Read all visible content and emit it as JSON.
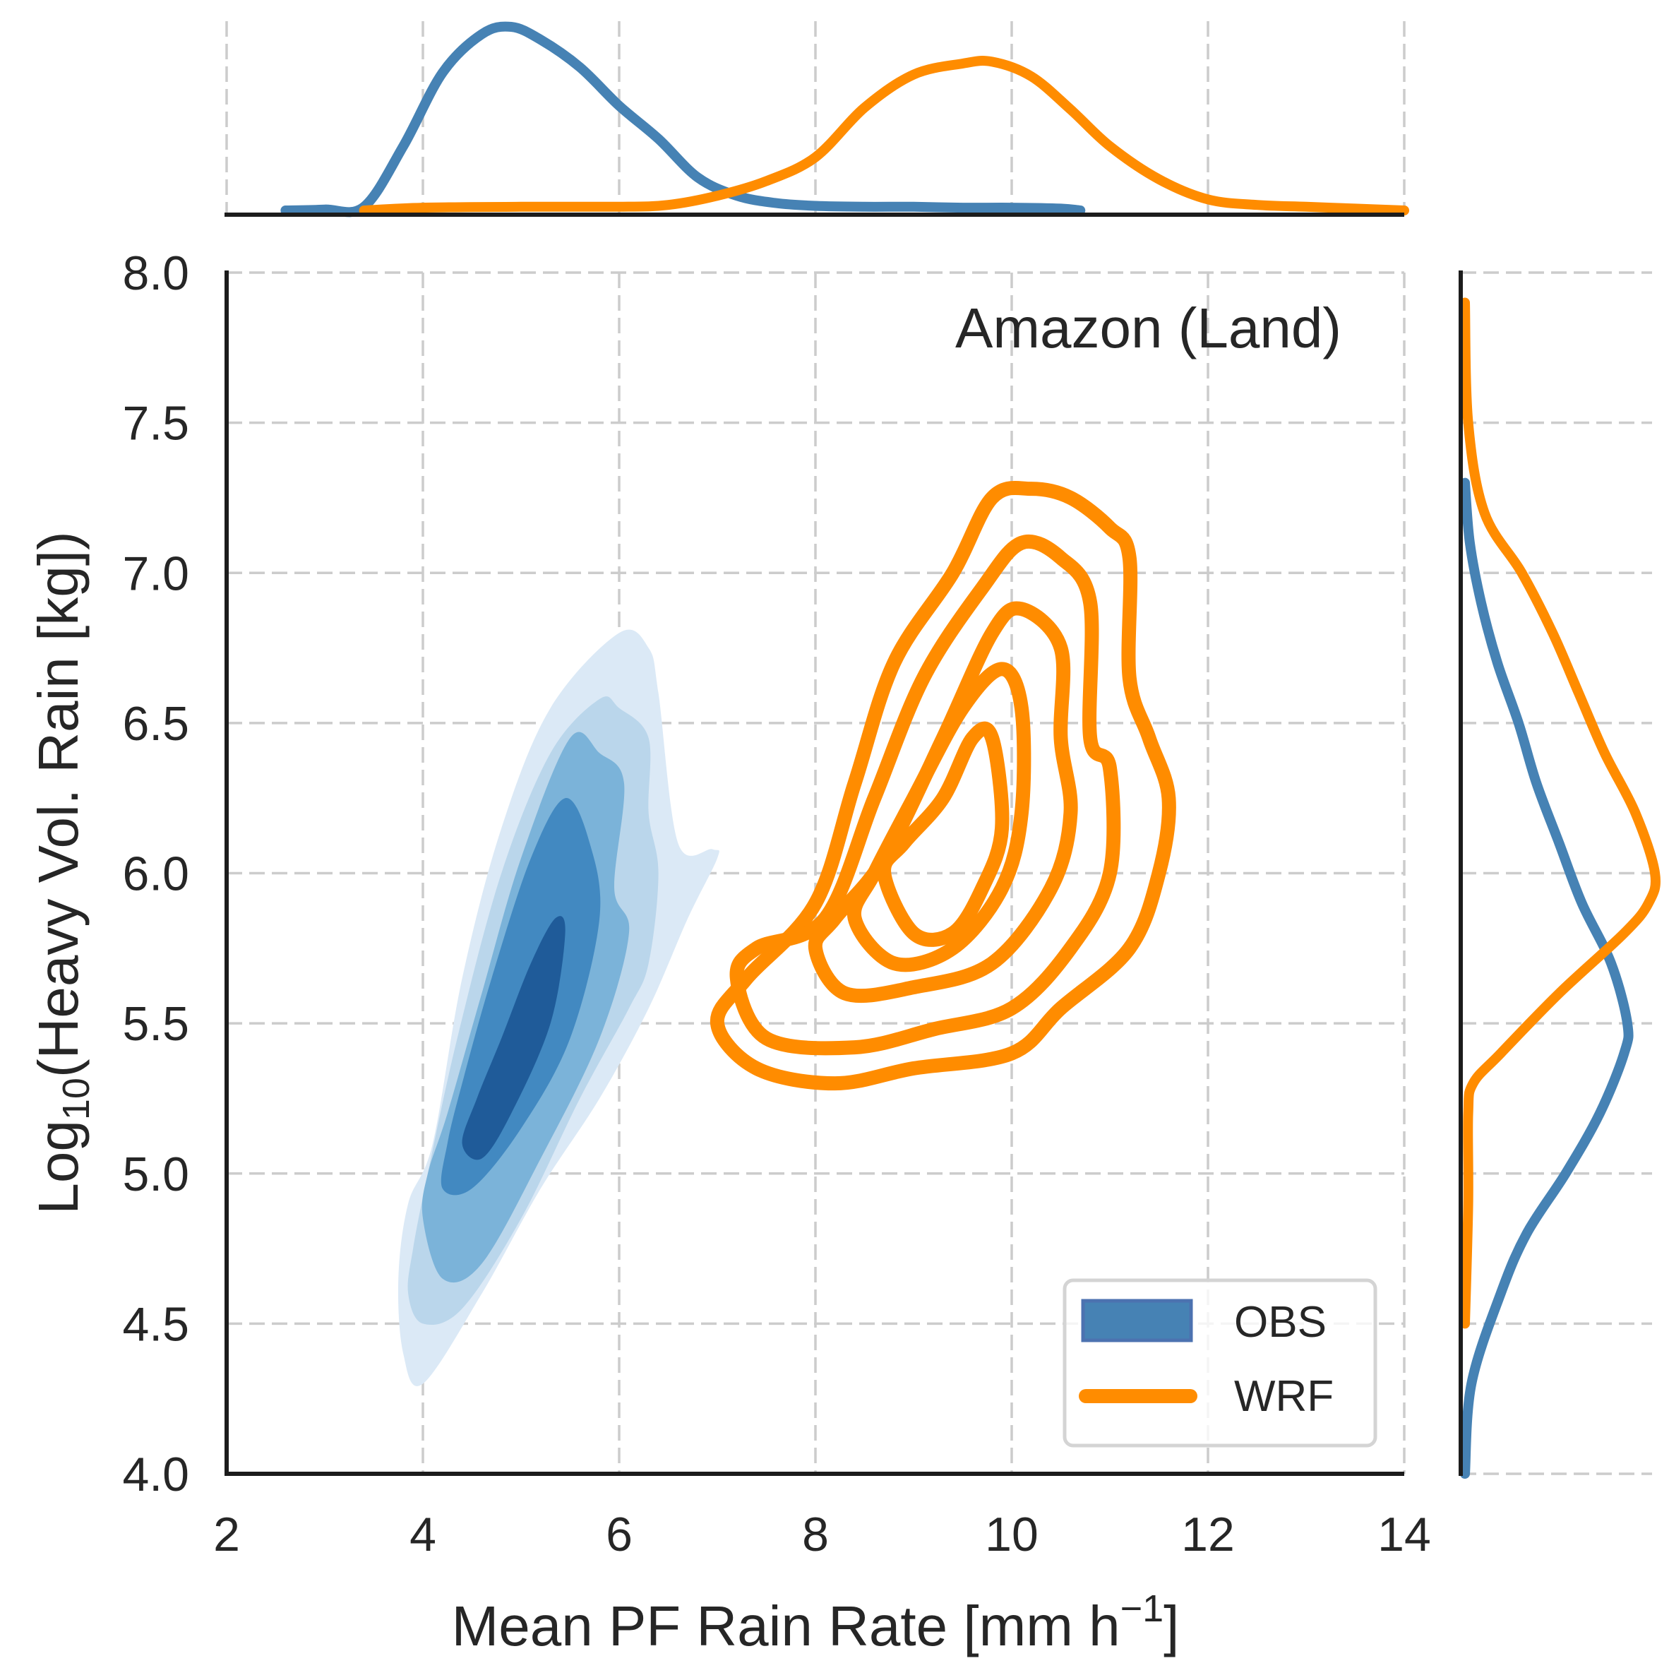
{
  "chart_data": {
    "type": "kde-joint",
    "title": "",
    "annotation": "Amazon (Land)",
    "xlabel": "Mean PF Rain Rate [mm h",
    "xlabel_sup": "−1",
    "xlabel_end": "]",
    "ylabel_prefix": "Log",
    "ylabel_sub": "10",
    "ylabel_suffix": "(Heavy Vol. Rain [kg])",
    "xlim": [
      2,
      14
    ],
    "ylim": [
      4.0,
      8.0
    ],
    "xticks": [
      2,
      4,
      6,
      8,
      10,
      12,
      14
    ],
    "xtick_labels": [
      "2",
      "4",
      "6",
      "8",
      "10",
      "12",
      "14"
    ],
    "yticks": [
      4.0,
      4.5,
      5.0,
      5.5,
      6.0,
      6.5,
      7.0,
      7.5,
      8.0
    ],
    "ytick_labels": [
      "4.0",
      "4.5",
      "5.0",
      "5.5",
      "6.0",
      "6.5",
      "7.0",
      "7.5",
      "8.0"
    ],
    "grid": true,
    "legend": {
      "placement": "lower-right",
      "entries": [
        {
          "label": "OBS",
          "kind": "patch",
          "color": "#4682b4"
        },
        {
          "label": "WRF",
          "kind": "line",
          "color": "#ff8c00"
        }
      ]
    },
    "colors": {
      "obs_line": "#4682b4",
      "wrf_line": "#ff8c00",
      "obs_fill_levels": [
        "#dbe9f6",
        "#bad6eb",
        "#7bb3d9",
        "#4289c1",
        "#1f5b99"
      ]
    },
    "series": [
      {
        "name": "OBS",
        "style": "filled-contour",
        "levels": [
          [
            [
              3.75,
              4.65
            ],
            [
              3.8,
              4.4
            ],
            [
              4.0,
              4.3
            ],
            [
              4.6,
              4.6
            ],
            [
              5.2,
              4.95
            ],
            [
              5.8,
              5.25
            ],
            [
              6.3,
              5.55
            ],
            [
              6.7,
              5.85
            ],
            [
              7.0,
              6.05
            ],
            [
              6.95,
              6.08
            ],
            [
              6.6,
              6.1
            ],
            [
              6.4,
              6.6
            ],
            [
              6.3,
              6.75
            ],
            [
              6.0,
              6.8
            ],
            [
              5.3,
              6.55
            ],
            [
              4.8,
              6.15
            ],
            [
              4.4,
              5.65
            ],
            [
              4.1,
              5.1
            ],
            [
              3.85,
              4.9
            ]
          ],
          [
            [
              3.85,
              4.6
            ],
            [
              4.0,
              4.5
            ],
            [
              4.4,
              4.55
            ],
            [
              5.0,
              4.85
            ],
            [
              5.6,
              5.25
            ],
            [
              6.1,
              5.55
            ],
            [
              6.3,
              5.7
            ],
            [
              6.4,
              6.0
            ],
            [
              6.3,
              6.2
            ],
            [
              6.3,
              6.45
            ],
            [
              6.0,
              6.55
            ],
            [
              5.8,
              6.58
            ],
            [
              5.3,
              6.4
            ],
            [
              4.8,
              6.0
            ],
            [
              4.35,
              5.45
            ],
            [
              4.05,
              5.0
            ],
            [
              3.9,
              4.75
            ]
          ],
          [
            [
              4.0,
              4.85
            ],
            [
              4.2,
              4.65
            ],
            [
              4.6,
              4.7
            ],
            [
              5.2,
              5.05
            ],
            [
              5.8,
              5.45
            ],
            [
              6.1,
              5.8
            ],
            [
              5.95,
              5.95
            ],
            [
              6.05,
              6.3
            ],
            [
              5.8,
              6.4
            ],
            [
              5.5,
              6.45
            ],
            [
              5.0,
              6.05
            ],
            [
              4.6,
              5.6
            ],
            [
              4.25,
              5.2
            ],
            [
              4.05,
              5.0
            ]
          ],
          [
            [
              4.2,
              4.95
            ],
            [
              4.5,
              4.95
            ],
            [
              5.0,
              5.15
            ],
            [
              5.5,
              5.45
            ],
            [
              5.8,
              5.85
            ],
            [
              5.7,
              6.1
            ],
            [
              5.45,
              6.25
            ],
            [
              5.1,
              6.05
            ],
            [
              4.7,
              5.65
            ],
            [
              4.4,
              5.3
            ],
            [
              4.25,
              5.1
            ]
          ],
          [
            [
              4.4,
              5.1
            ],
            [
              4.6,
              5.05
            ],
            [
              4.9,
              5.2
            ],
            [
              5.3,
              5.5
            ],
            [
              5.45,
              5.8
            ],
            [
              5.35,
              5.85
            ],
            [
              5.1,
              5.7
            ],
            [
              4.8,
              5.45
            ],
            [
              4.55,
              5.25
            ]
          ]
        ]
      },
      {
        "name": "WRF",
        "style": "line-contour",
        "levels": [
          [
            [
              7.0,
              5.5
            ],
            [
              7.4,
              5.35
            ],
            [
              8.2,
              5.3
            ],
            [
              9.0,
              5.35
            ],
            [
              10.0,
              5.4
            ],
            [
              10.5,
              5.55
            ],
            [
              11.2,
              5.75
            ],
            [
              11.5,
              6.0
            ],
            [
              11.6,
              6.25
            ],
            [
              11.4,
              6.45
            ],
            [
              11.2,
              6.65
            ],
            [
              11.2,
              7.05
            ],
            [
              11.0,
              7.15
            ],
            [
              10.6,
              7.25
            ],
            [
              10.2,
              7.28
            ],
            [
              9.8,
              7.25
            ],
            [
              9.4,
              7.0
            ],
            [
              8.8,
              6.7
            ],
            [
              8.4,
              6.3
            ],
            [
              8.0,
              5.9
            ],
            [
              7.3,
              5.65
            ]
          ],
          [
            [
              7.2,
              5.65
            ],
            [
              7.5,
              5.45
            ],
            [
              8.4,
              5.42
            ],
            [
              9.2,
              5.48
            ],
            [
              10.0,
              5.55
            ],
            [
              10.6,
              5.75
            ],
            [
              11.0,
              6.0
            ],
            [
              11.0,
              6.35
            ],
            [
              10.8,
              6.45
            ],
            [
              10.8,
              6.9
            ],
            [
              10.5,
              7.05
            ],
            [
              10.1,
              7.1
            ],
            [
              9.7,
              6.95
            ],
            [
              9.1,
              6.65
            ],
            [
              8.6,
              6.25
            ],
            [
              8.1,
              5.85
            ],
            [
              7.4,
              5.75
            ]
          ],
          [
            [
              8.0,
              5.75
            ],
            [
              8.3,
              5.6
            ],
            [
              9.0,
              5.62
            ],
            [
              9.8,
              5.7
            ],
            [
              10.4,
              5.95
            ],
            [
              10.6,
              6.2
            ],
            [
              10.5,
              6.45
            ],
            [
              10.5,
              6.75
            ],
            [
              10.1,
              6.88
            ],
            [
              9.8,
              6.8
            ],
            [
              9.3,
              6.45
            ],
            [
              8.7,
              6.05
            ],
            [
              8.2,
              5.85
            ]
          ],
          [
            [
              8.4,
              5.85
            ],
            [
              8.8,
              5.7
            ],
            [
              9.4,
              5.75
            ],
            [
              9.9,
              5.95
            ],
            [
              10.1,
              6.2
            ],
            [
              10.1,
              6.55
            ],
            [
              9.9,
              6.68
            ],
            [
              9.5,
              6.55
            ],
            [
              9.0,
              6.25
            ],
            [
              8.6,
              6.0
            ]
          ],
          [
            [
              8.7,
              6.0
            ],
            [
              9.0,
              5.8
            ],
            [
              9.4,
              5.8
            ],
            [
              9.7,
              5.95
            ],
            [
              9.9,
              6.15
            ],
            [
              9.8,
              6.45
            ],
            [
              9.6,
              6.45
            ],
            [
              9.3,
              6.25
            ],
            [
              8.9,
              6.1
            ]
          ]
        ]
      }
    ],
    "marginal_x": {
      "OBS": {
        "x": [
          2.6,
          3.0,
          3.4,
          3.8,
          4.2,
          4.6,
          4.9,
          5.2,
          5.6,
          6.0,
          6.4,
          6.8,
          7.2,
          7.6,
          8.0,
          8.5,
          9.0,
          9.5,
          10.0,
          10.5,
          10.7
        ],
        "density": [
          0.0,
          0.005,
          0.02,
          0.35,
          0.75,
          0.96,
          1.0,
          0.93,
          0.78,
          0.57,
          0.39,
          0.18,
          0.08,
          0.04,
          0.025,
          0.02,
          0.02,
          0.015,
          0.015,
          0.01,
          0.0
        ]
      },
      "WRF": {
        "x": [
          3.4,
          4.0,
          5.0,
          6.0,
          6.5,
          7.0,
          7.5,
          8.0,
          8.5,
          9.0,
          9.5,
          9.8,
          10.2,
          10.6,
          11.0,
          11.5,
          12.0,
          12.5,
          13.0,
          13.5,
          14.0
        ],
        "density": [
          0.0,
          0.015,
          0.02,
          0.02,
          0.03,
          0.08,
          0.16,
          0.29,
          0.56,
          0.74,
          0.8,
          0.81,
          0.73,
          0.55,
          0.35,
          0.17,
          0.06,
          0.03,
          0.02,
          0.01,
          0.0
        ]
      }
    },
    "marginal_y": {
      "OBS": {
        "y": [
          4.0,
          4.3,
          4.6,
          4.8,
          5.0,
          5.2,
          5.4,
          5.5,
          5.7,
          5.9,
          6.1,
          6.3,
          6.5,
          6.7,
          6.9,
          7.1,
          7.3
        ],
        "density": [
          0.0,
          0.04,
          0.22,
          0.38,
          0.62,
          0.83,
          0.98,
          1.0,
          0.9,
          0.72,
          0.58,
          0.44,
          0.33,
          0.2,
          0.1,
          0.03,
          0.0
        ]
      },
      "WRF": {
        "y": [
          4.5,
          4.9,
          5.2,
          5.3,
          5.4,
          5.6,
          5.8,
          5.9,
          6.0,
          6.2,
          6.4,
          6.6,
          6.8,
          7.0,
          7.2,
          7.5,
          7.9
        ],
        "density": [
          0.0,
          0.02,
          0.02,
          0.05,
          0.22,
          0.58,
          0.98,
          1.13,
          1.17,
          1.05,
          0.86,
          0.7,
          0.54,
          0.35,
          0.12,
          0.02,
          0.0
        ]
      }
    }
  }
}
